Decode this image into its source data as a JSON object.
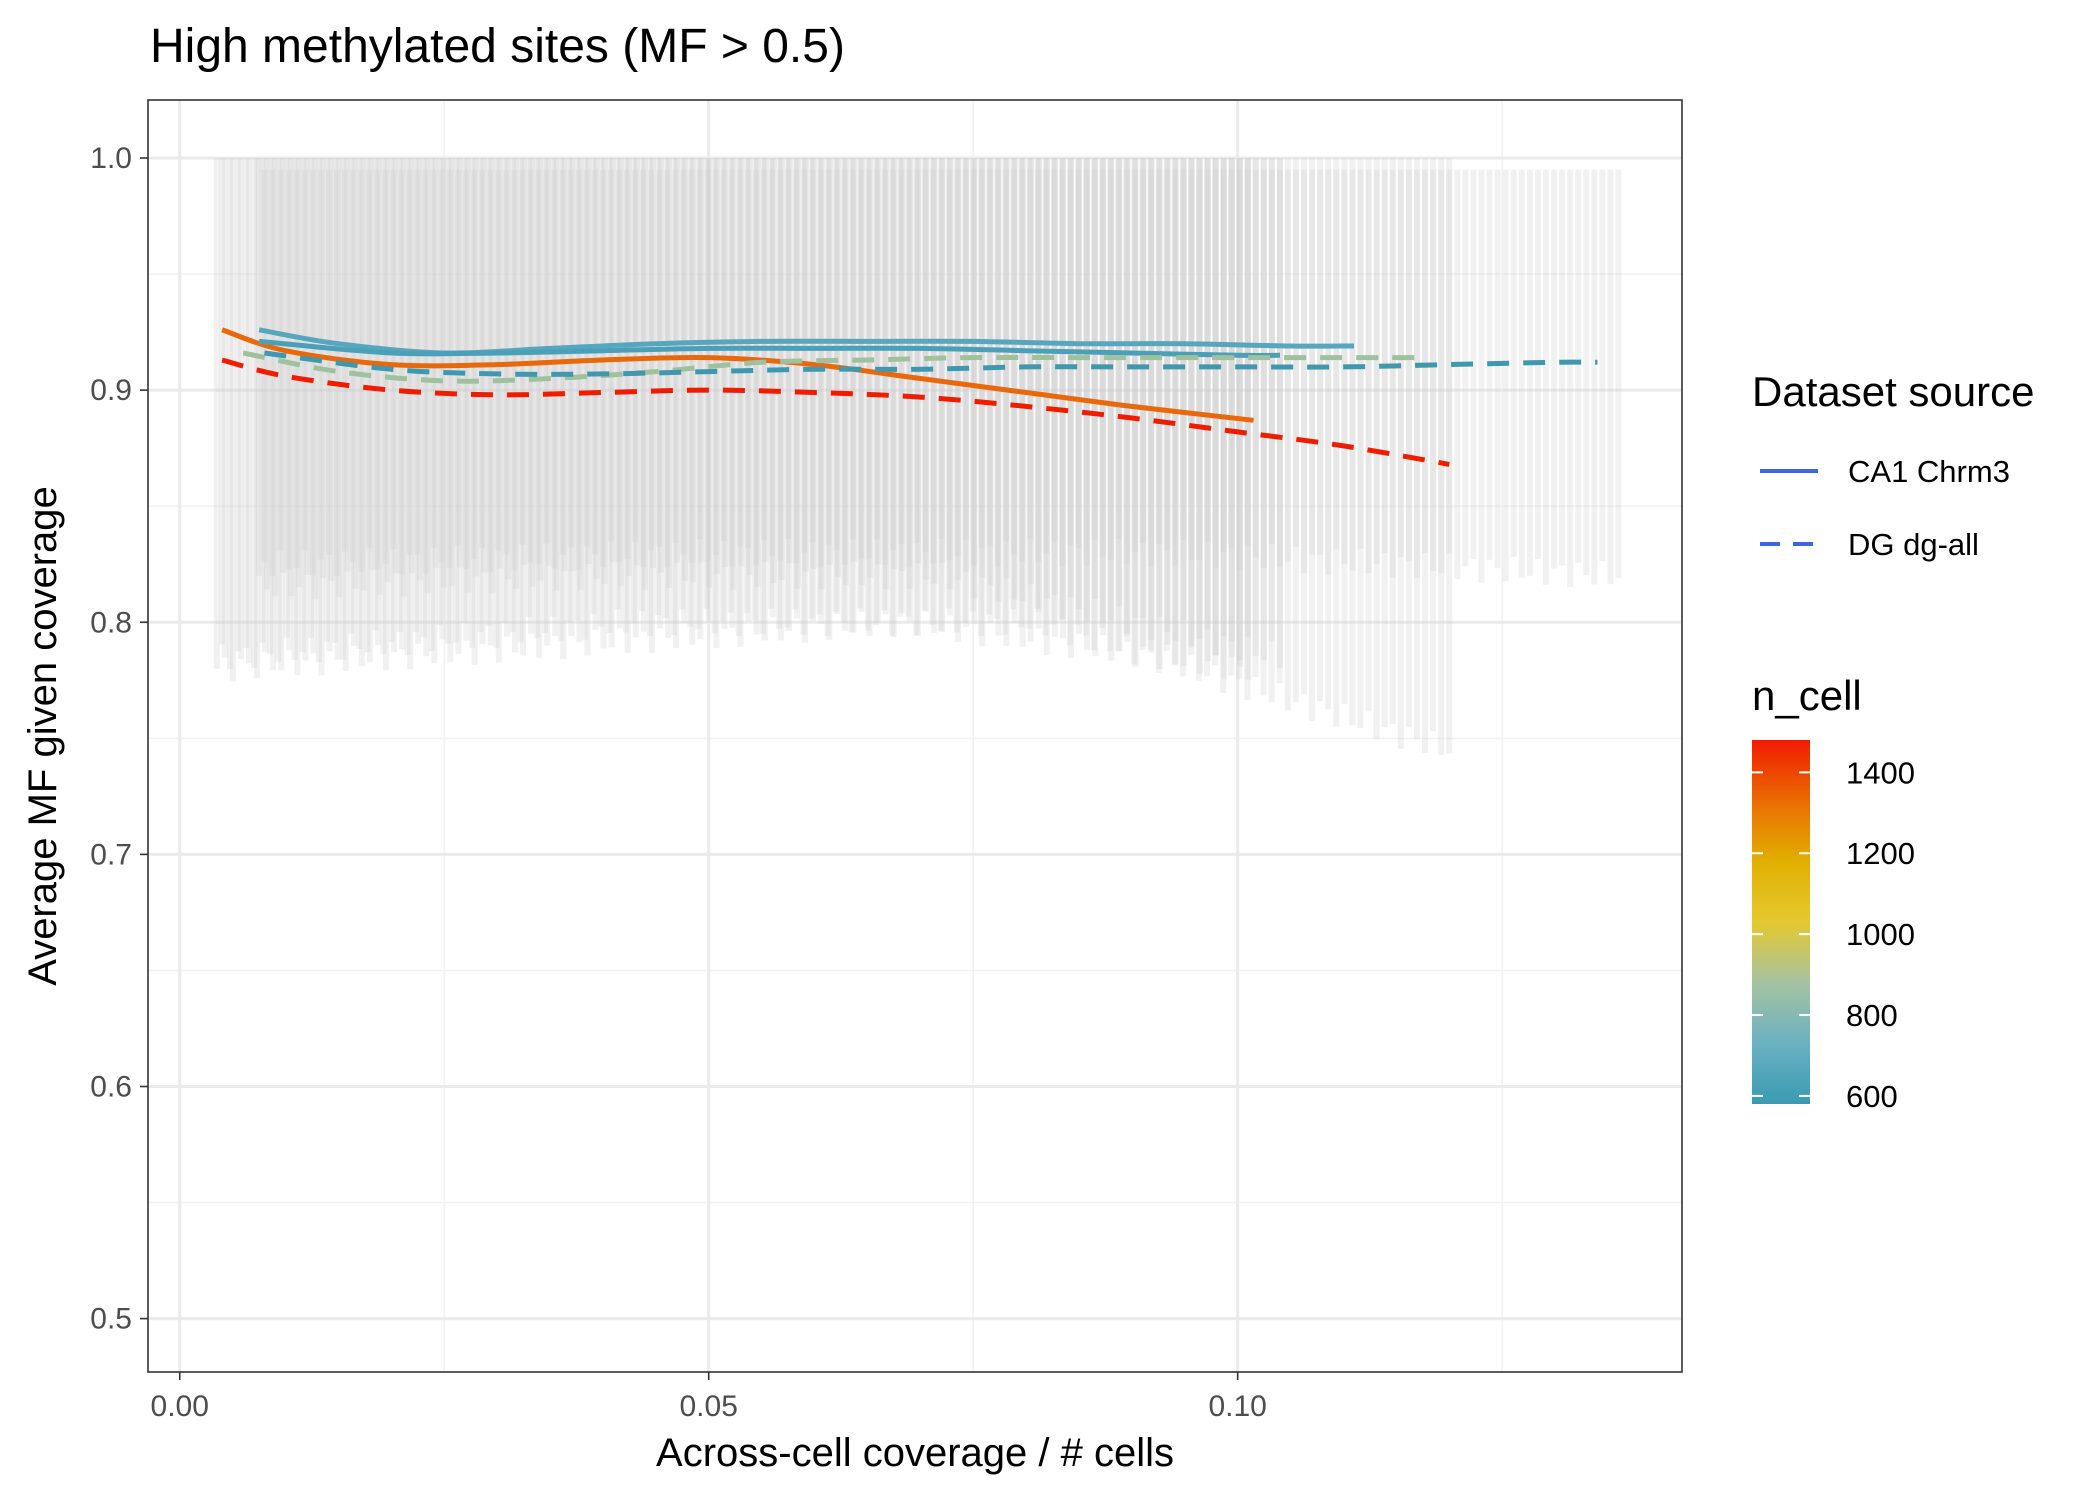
{
  "chart_data": {
    "type": "line",
    "title": "High methylated sites (MF > 0.5)",
    "xlabel": "Across-cell coverage / # cells",
    "ylabel": "Average MF given coverage",
    "xlim": [
      -0.003,
      0.142
    ],
    "ylim": [
      0.477,
      1.025
    ],
    "x_ticks": [
      0.0,
      0.05,
      0.1
    ],
    "x_tick_labels": [
      "0.00",
      "0.05",
      "0.10"
    ],
    "y_ticks": [
      0.5,
      0.6,
      0.7,
      0.8,
      0.9,
      1.0
    ],
    "y_tick_labels": [
      "0.5",
      "0.6",
      "0.7",
      "0.8",
      "0.9",
      "1.0"
    ],
    "grid": true,
    "legend_position": "right",
    "linetype_legend": {
      "title": "Dataset source",
      "items": [
        {
          "label": "CA1 Chrm3",
          "dash": "solid"
        },
        {
          "label": "DG dg-all",
          "dash": "dashed"
        }
      ],
      "color": "#3a66e8"
    },
    "color_legend": {
      "title": "n_cell",
      "min": 580,
      "max": 1480,
      "ticks": [
        600,
        800,
        1000,
        1200,
        1400
      ],
      "tick_labels": [
        "600",
        "800",
        "1000",
        "1200",
        "1400"
      ],
      "gradient_colors": [
        "#3a9ab2",
        "#6bb1c1",
        "#a5c2a2",
        "#e4c930",
        "#e1af00",
        "#ea6c02",
        "#f11b00"
      ]
    },
    "error_band_color": "#cccccc",
    "error_bars": [
      {
        "x_range": [
          0.0035,
          0.101
        ],
        "lower": [
          0.78,
          0.79,
          0.8,
          0.78
        ],
        "upper": 1.0
      },
      {
        "x_range": [
          0.0075,
          0.104
        ],
        "lower": [
          0.815,
          0.82,
          0.82,
          0.785
        ],
        "upper": 1.0
      },
      {
        "x_range": [
          0.004,
          0.12
        ],
        "lower": [
          0.785,
          0.8,
          0.8,
          0.745
        ],
        "upper": 1.0
      },
      {
        "x_range": [
          0.008,
          0.136
        ],
        "lower": [
          0.825,
          0.83,
          0.83,
          0.82
        ],
        "upper": 0.995
      }
    ],
    "series": [
      {
        "name": "CA1 Chrm3",
        "n_cell": 750,
        "dash": "solid",
        "color": "#56a6bd",
        "x": [
          0.0075,
          0.015,
          0.025,
          0.035,
          0.045,
          0.055,
          0.065,
          0.075,
          0.085,
          0.095,
          0.105,
          0.111
        ],
        "y": [
          0.926,
          0.92,
          0.916,
          0.918,
          0.92,
          0.921,
          0.921,
          0.921,
          0.92,
          0.92,
          0.919,
          0.919
        ]
      },
      {
        "name": "CA1 Chrm3",
        "n_cell": 1380,
        "dash": "solid",
        "color": "#e8680a",
        "x": [
          0.004,
          0.01,
          0.02,
          0.03,
          0.04,
          0.05,
          0.06,
          0.07,
          0.08,
          0.09,
          0.1015
        ],
        "y": [
          0.926,
          0.917,
          0.911,
          0.911,
          0.913,
          0.914,
          0.911,
          0.905,
          0.899,
          0.893,
          0.887
        ]
      },
      {
        "name": "CA1 Chrm3",
        "n_cell": 700,
        "dash": "solid",
        "color": "#4aa0b8",
        "x": [
          0.0075,
          0.02,
          0.03,
          0.04,
          0.05,
          0.06,
          0.07,
          0.08,
          0.09,
          0.1,
          0.104
        ],
        "y": [
          0.921,
          0.916,
          0.916,
          0.917,
          0.918,
          0.918,
          0.918,
          0.917,
          0.916,
          0.915,
          0.915
        ]
      },
      {
        "name": "DG dg-all",
        "n_cell": 960,
        "dash": "dashed",
        "color": "#9fc19e",
        "x": [
          0.006,
          0.015,
          0.025,
          0.035,
          0.045,
          0.055,
          0.065,
          0.075,
          0.085,
          0.095,
          0.105,
          0.118
        ],
        "y": [
          0.916,
          0.908,
          0.904,
          0.905,
          0.908,
          0.912,
          0.913,
          0.914,
          0.914,
          0.914,
          0.914,
          0.914
        ]
      },
      {
        "name": "DG dg-all",
        "n_cell": 620,
        "dash": "dashed",
        "color": "#3f98b0",
        "x": [
          0.008,
          0.02,
          0.03,
          0.04,
          0.05,
          0.06,
          0.07,
          0.08,
          0.09,
          0.1,
          0.11,
          0.12,
          0.13,
          0.134
        ],
        "y": [
          0.916,
          0.909,
          0.907,
          0.907,
          0.908,
          0.909,
          0.909,
          0.91,
          0.91,
          0.91,
          0.91,
          0.911,
          0.912,
          0.912
        ]
      },
      {
        "name": "DG dg-all",
        "n_cell": 1450,
        "dash": "dashed",
        "color": "#f11b00",
        "x": [
          0.004,
          0.01,
          0.02,
          0.03,
          0.04,
          0.05,
          0.06,
          0.07,
          0.08,
          0.09,
          0.1,
          0.11,
          0.12
        ],
        "y": [
          0.913,
          0.906,
          0.9,
          0.898,
          0.899,
          0.9,
          0.899,
          0.897,
          0.893,
          0.888,
          0.882,
          0.876,
          0.868
        ]
      }
    ]
  }
}
